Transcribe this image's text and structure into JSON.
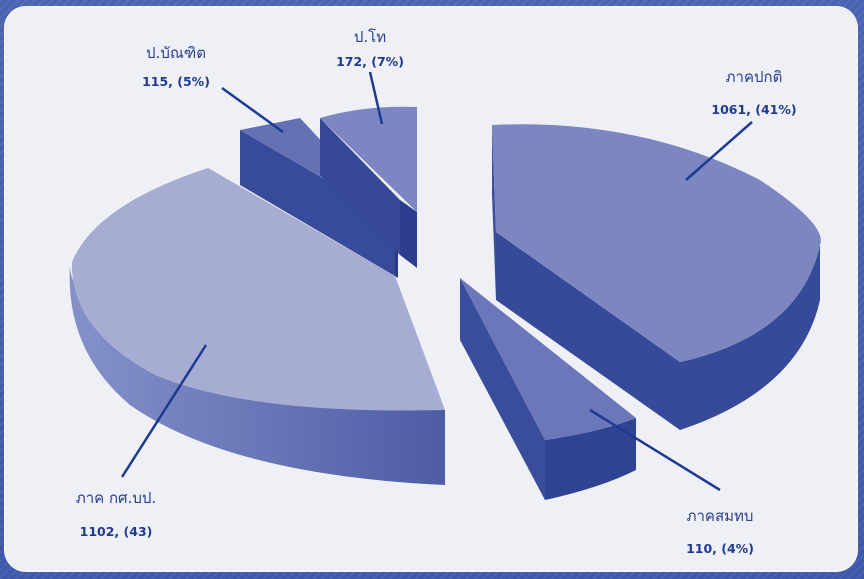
{
  "chart_data": {
    "type": "pie",
    "title": "",
    "slices": [
      {
        "label": "ภาคปกติ",
        "value": 1061,
        "value_text": "1061, (41%)"
      },
      {
        "label": "ภาคสมทบ",
        "value": 110,
        "value_text": "110, (4%)"
      },
      {
        "label": "ภาค กศ.บป.",
        "value": 1102,
        "value_text": "1102, (43)"
      },
      {
        "label": "ป.บัณฑิต",
        "value": 115,
        "value_text": "115, (5%)"
      },
      {
        "label": "ป.โท",
        "value": 172,
        "value_text": "172, (7%)"
      }
    ],
    "legend": "none",
    "style": "3d-exploded"
  },
  "colors": {
    "page_border": "#3f58a9",
    "card": "#eef0f6",
    "text": "#1f3a93"
  }
}
